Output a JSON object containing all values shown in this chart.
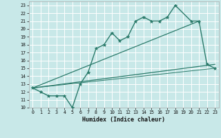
{
  "xlabel": "Humidex (Indice chaleur)",
  "xlim": [
    -0.5,
    23.5
  ],
  "ylim": [
    10,
    23.5
  ],
  "xticks": [
    0,
    1,
    2,
    3,
    4,
    5,
    6,
    7,
    8,
    9,
    10,
    11,
    12,
    13,
    14,
    15,
    16,
    17,
    18,
    19,
    20,
    21,
    22,
    23
  ],
  "yticks": [
    10,
    11,
    12,
    13,
    14,
    15,
    16,
    17,
    18,
    19,
    20,
    21,
    22,
    23
  ],
  "bg_color": "#c8e8e8",
  "grid_color": "#ffffff",
  "line_color": "#2a7a6a",
  "curve_x": [
    0,
    1,
    2,
    3,
    4,
    5,
    6,
    7,
    8,
    9,
    10,
    11,
    12,
    13,
    14,
    15,
    16,
    17,
    18,
    20,
    21,
    22,
    23
  ],
  "curve_y": [
    12.5,
    12,
    11.5,
    11.5,
    11.5,
    10,
    13,
    14.5,
    17.5,
    18,
    19.5,
    18.5,
    19,
    21,
    21.5,
    21,
    21,
    21.5,
    23,
    21,
    21,
    15.5,
    15
  ],
  "line2_x": [
    0,
    21
  ],
  "line2_y": [
    12.5,
    21
  ],
  "line3_x": [
    0,
    23
  ],
  "line3_y": [
    12.5,
    15.5
  ],
  "line4_x": [
    0,
    23
  ],
  "line4_y": [
    12.5,
    15.0
  ]
}
